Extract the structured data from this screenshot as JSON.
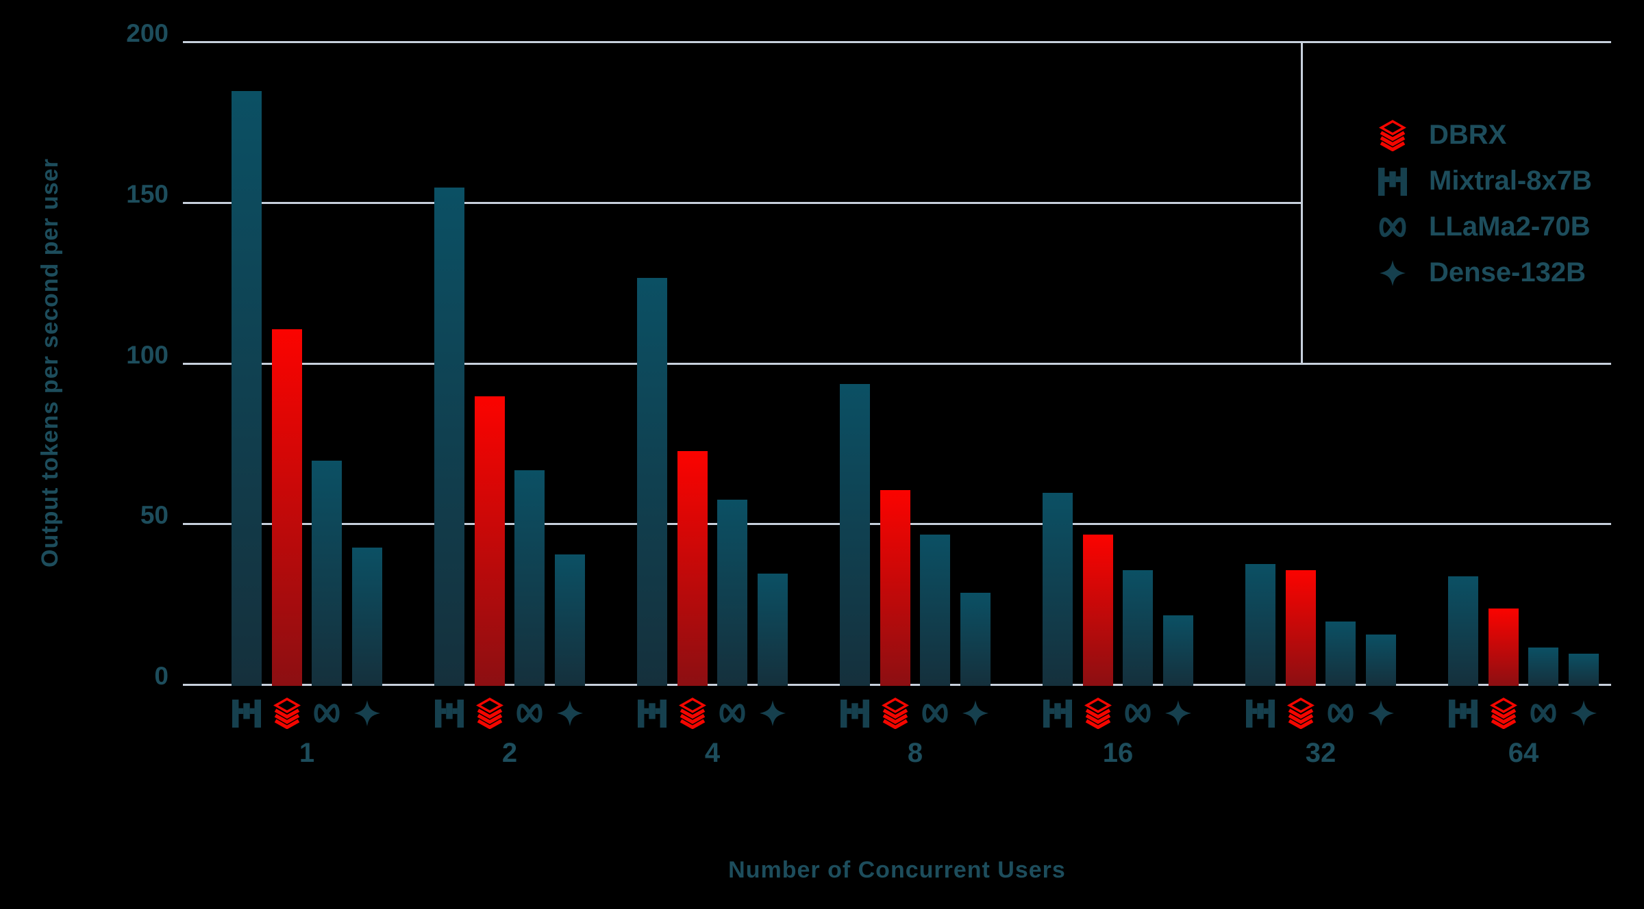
{
  "colors": {
    "background": "#000000",
    "gridline": "#c7d0dc",
    "text_teal": "#1d4d5c",
    "icon_teal": "#16404e",
    "icon_red": "#f40600",
    "teal_bar_top": "#0b5064",
    "teal_bar_bottom": "#15303c",
    "red_bar_top": "#fb0300",
    "red_bar_bottom": "#8c0f12"
  },
  "chart_data": {
    "type": "bar",
    "title": "",
    "xlabel": "Number of Concurrent Users",
    "ylabel": "Output tokens per second per user",
    "categories": [
      "1",
      "2",
      "4",
      "8",
      "16",
      "32",
      "64"
    ],
    "yticks": [
      0,
      50,
      100,
      150,
      200
    ],
    "ylim": [
      0,
      200
    ],
    "grid": "horizontal",
    "legend_position": "top-right",
    "series": [
      {
        "name": "Mixtral-8x7B",
        "icon": "mixtral-icon",
        "color": "teal",
        "values": [
          185,
          155,
          127,
          94,
          60,
          38,
          34
        ]
      },
      {
        "name": "DBRX",
        "icon": "databricks-icon",
        "color": "red",
        "values": [
          111,
          90,
          73,
          61,
          47,
          36,
          24
        ]
      },
      {
        "name": "LLaMa2-70B",
        "icon": "meta-infinity-icon",
        "color": "teal",
        "values": [
          70,
          67,
          58,
          47,
          36,
          20,
          12
        ]
      },
      {
        "name": "Dense-132B",
        "icon": "sparkle-star-icon",
        "color": "teal",
        "values": [
          43,
          41,
          35,
          29,
          22,
          16,
          10
        ]
      }
    ],
    "legend": [
      {
        "label": "DBRX",
        "icon": "databricks-icon"
      },
      {
        "label": "Mixtral-8x7B",
        "icon": "mixtral-icon"
      },
      {
        "label": "LLaMa2-70B",
        "icon": "meta-infinity-icon"
      },
      {
        "label": "Dense-132B",
        "icon": "sparkle-star-icon"
      }
    ]
  }
}
